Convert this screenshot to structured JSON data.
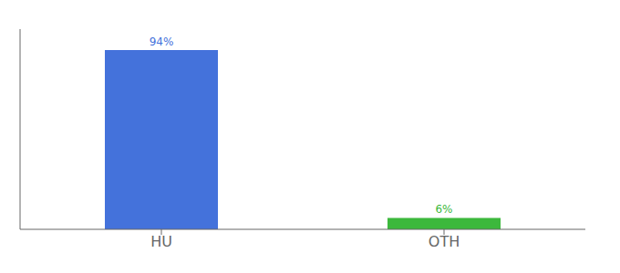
{
  "chart_data": {
    "type": "bar",
    "categories": [
      "HU",
      "OTH"
    ],
    "values": [
      94,
      6
    ],
    "value_labels": [
      "94%",
      "6%"
    ],
    "colors": [
      "#4472DB",
      "#3CB83C"
    ],
    "ylim": [
      0,
      105
    ],
    "grid": false,
    "data_labels": true,
    "tick_labels": "x"
  }
}
